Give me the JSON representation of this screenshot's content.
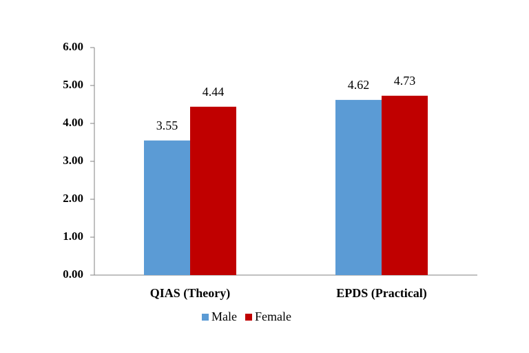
{
  "chart_data": {
    "type": "bar",
    "categories": [
      "QIAS (Theory)",
      "EPDS (Practical)"
    ],
    "series": [
      {
        "name": "Male",
        "color": "#5b9bd5",
        "values": [
          3.55,
          4.62
        ]
      },
      {
        "name": "Female",
        "color": "#c00000",
        "values": [
          4.44,
          4.73
        ]
      }
    ],
    "ylim": [
      0,
      6
    ],
    "yticks": [
      {
        "value": 0,
        "label": "0.00"
      },
      {
        "value": 1,
        "label": "1.00"
      },
      {
        "value": 2,
        "label": "2.00"
      },
      {
        "value": 3,
        "label": "3.00"
      },
      {
        "value": 4,
        "label": "4.00"
      },
      {
        "value": 5,
        "label": "5.00"
      },
      {
        "value": 6,
        "label": "6.00"
      }
    ],
    "legend": "bottom"
  }
}
